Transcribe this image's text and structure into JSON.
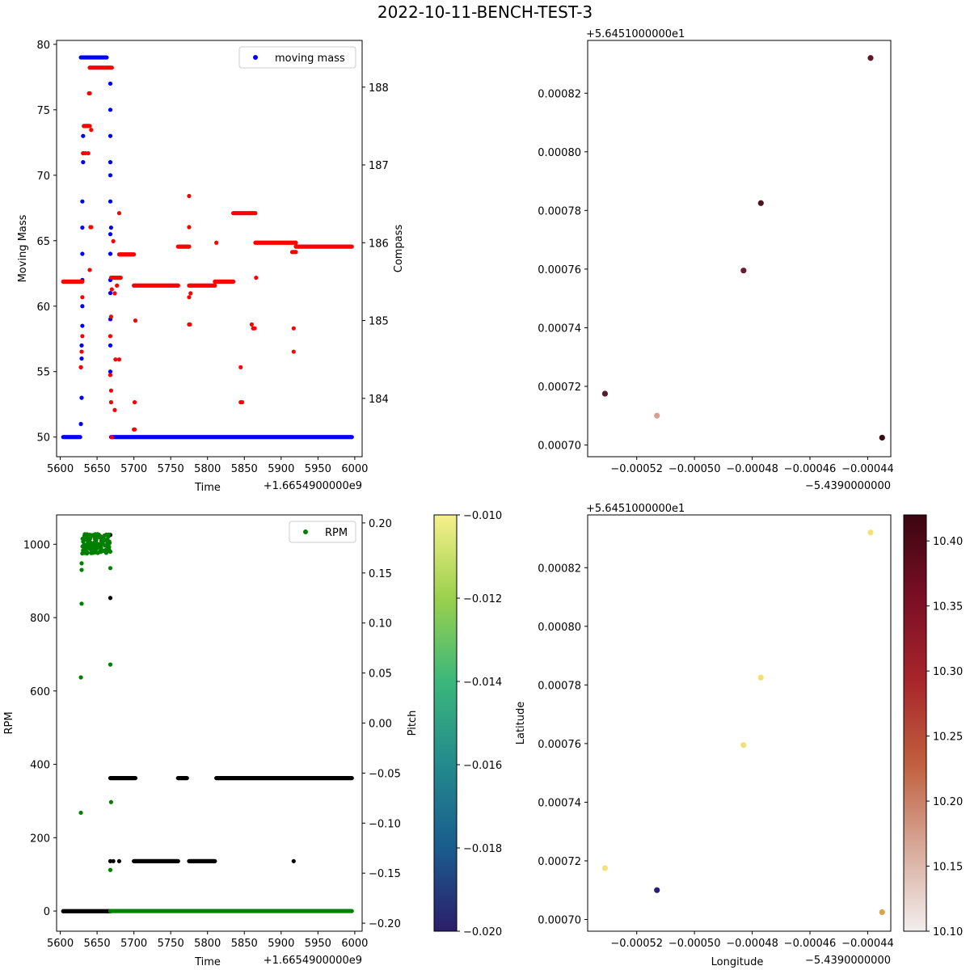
{
  "figure_title": "2022-10-11-BENCH-TEST-3",
  "chart_data": [
    {
      "id": "moving-mass-compass",
      "type": "scatter",
      "xlabel": "Time",
      "ylabel": "Moving Mass",
      "ylabel_right": "Compass",
      "x_offset_text": "+1.6654900000e9",
      "xlim": [
        5595,
        6010
      ],
      "ylim": [
        48.5,
        80.3
      ],
      "ylim_right": [
        183.25,
        188.6
      ],
      "xticks": [
        5600,
        5650,
        5700,
        5750,
        5800,
        5850,
        5900,
        5950,
        6000
      ],
      "yticks": [
        50,
        55,
        60,
        65,
        70,
        75,
        80
      ],
      "yticks_right": [
        184,
        185,
        186,
        187,
        188
      ],
      "legend": {
        "entries": [
          "moving mass"
        ],
        "position": "top-right"
      },
      "series": [
        {
          "name": "moving mass",
          "color": "#0000ff",
          "axis": "left",
          "runs": [
            [
              5604,
              5627,
              50
            ],
            [
              5628,
              5663,
              79
            ],
            [
              5669,
              5996,
              50
            ]
          ],
          "points": [
            [
              5628,
              51
            ],
            [
              5629,
              53
            ],
            [
              5629,
              56
            ],
            [
              5629,
              57
            ],
            [
              5630,
              58.5
            ],
            [
              5630,
              60
            ],
            [
              5630,
              62
            ],
            [
              5630,
              64
            ],
            [
              5630,
              66
            ],
            [
              5630,
              68
            ],
            [
              5631,
              71
            ],
            [
              5631,
              73
            ],
            [
              5668,
              55
            ],
            [
              5668,
              57
            ],
            [
              5668,
              59
            ],
            [
              5668,
              61
            ],
            [
              5668,
              62
            ],
            [
              5668,
              64
            ],
            [
              5668,
              65.5
            ],
            [
              5669,
              66
            ],
            [
              5668,
              68
            ],
            [
              5668,
              70
            ],
            [
              5668,
              71
            ],
            [
              5668,
              73
            ],
            [
              5668,
              75
            ],
            [
              5668,
              77
            ]
          ]
        },
        {
          "name": "compass",
          "color": "#ff0000",
          "axis": "right",
          "runs": [
            [
              5604,
              5630,
              185.5
            ],
            [
              5632,
              5640,
              187.5
            ],
            [
              5640,
              5670,
              188.25
            ],
            [
              5669,
              5682,
              185.55
            ],
            [
              5680,
              5700,
              185.85
            ],
            [
              5700,
              5760,
              185.45
            ],
            [
              5760,
              5775,
              185.95
            ],
            [
              5775,
              5810,
              185.45
            ],
            [
              5810,
              5835,
              185.5
            ],
            [
              5835,
              5865,
              186.38
            ],
            [
              5865,
              5920,
              186
            ],
            [
              5915,
              5920,
              185.88
            ],
            [
              5920,
              5996,
              185.95
            ]
          ],
          "points": [
            [
              5628,
              184.4
            ],
            [
              5628,
              184.4
            ],
            [
              5629,
              184.6
            ],
            [
              5630,
              184.8
            ],
            [
              5630,
              185.3
            ],
            [
              5631,
              187.15
            ],
            [
              5631,
              187.15
            ],
            [
              5634,
              187.15
            ],
            [
              5638,
              187.15
            ],
            [
              5639,
              187.92
            ],
            [
              5640,
              187.92
            ],
            [
              5642,
              187.45
            ],
            [
              5641,
              186.2
            ],
            [
              5642,
              186.2
            ],
            [
              5640,
              185.65
            ],
            [
              5668,
              184.3
            ],
            [
              5668,
              184.8
            ],
            [
              5669,
              185.05
            ],
            [
              5669,
              184.1
            ],
            [
              5669,
              183.95
            ],
            [
              5670,
              183.5
            ],
            [
              5670,
              185.4
            ],
            [
              5674,
              183.85
            ],
            [
              5675,
              184.5
            ],
            [
              5680,
              184.5
            ],
            [
              5680,
              186.38
            ],
            [
              5674,
              185.35
            ],
            [
              5677,
              185.45
            ],
            [
              5672,
              186.02
            ],
            [
              5683,
              185.85
            ],
            [
              5701,
              183.95
            ],
            [
              5702,
              185.0
            ],
            [
              5701,
              183.6
            ],
            [
              5700,
              183.6
            ],
            [
              5775,
              186.6
            ],
            [
              5775,
              186.2
            ],
            [
              5775,
              184.95
            ],
            [
              5776,
              184.95
            ],
            [
              5775,
              185.3
            ],
            [
              5777,
              185.35
            ],
            [
              5812,
              186
            ],
            [
              5845,
              184.4
            ],
            [
              5845,
              183.95
            ],
            [
              5847,
              183.95
            ],
            [
              5860,
              184.95
            ],
            [
              5862,
              184.9
            ],
            [
              5864,
              184.9
            ],
            [
              5866,
              185.55
            ],
            [
              5917,
              184.6
            ],
            [
              5917,
              184.9
            ]
          ]
        }
      ]
    },
    {
      "id": "lat-lon-compass",
      "type": "scatter",
      "xlabel": "",
      "ylabel": "",
      "x_offset_text": "−5.4390000000",
      "y_offset_text": "+5.6451000000e1",
      "xlim": [
        -0.000537,
        -0.000432
      ],
      "ylim": [
        0.000696,
        0.000838
      ],
      "xticks": [
        -0.00052,
        -0.0005,
        -0.00048,
        -0.00046,
        -0.00044
      ],
      "xtick_labels": [
        "−0.00052",
        "−0.00050",
        "−0.00048",
        "−0.00046",
        "−0.00044"
      ],
      "yticks": [
        0.0007,
        0.00072,
        0.00074,
        0.00076,
        0.00078,
        0.0008,
        0.00082
      ],
      "ytick_labels": [
        "0.00070",
        "0.00072",
        "0.00074",
        "0.00076",
        "0.00078",
        "0.00080",
        "0.00082"
      ],
      "points": [
        {
          "x": -0.000531,
          "y": 0.0007175,
          "color": "#5a1a2e"
        },
        {
          "x": -0.000513,
          "y": 0.00071,
          "color": "#d9a08e"
        },
        {
          "x": -0.000483,
          "y": 0.0007595,
          "color": "#6b1a33"
        },
        {
          "x": -0.000477,
          "y": 0.0007825,
          "color": "#4e1420"
        },
        {
          "x": -0.000439,
          "y": 0.000832,
          "color": "#5e1628"
        },
        {
          "x": -0.000435,
          "y": 0.0007025,
          "color": "#3a0a14"
        }
      ]
    },
    {
      "id": "rpm-pitch",
      "type": "scatter",
      "xlabel": "Time",
      "ylabel": "RPM",
      "ylabel_right": "Pitch",
      "x_offset_text": "+1.6654900000e9",
      "xlim": [
        5595,
        6010
      ],
      "ylim": [
        -55,
        1080
      ],
      "ylim_right": [
        -0.208,
        0.208
      ],
      "xticks": [
        5600,
        5650,
        5700,
        5750,
        5800,
        5850,
        5900,
        5950,
        6000
      ],
      "yticks": [
        0,
        200,
        400,
        600,
        800,
        1000
      ],
      "yticks_right": [
        -0.2,
        -0.15,
        -0.1,
        -0.05,
        0.0,
        0.05,
        0.1,
        0.15,
        0.2
      ],
      "ytick_labels_right": [
        "−0.20",
        "−0.15",
        "−0.10",
        "−0.05",
        "0.00",
        "0.05",
        "0.10",
        "0.15",
        "0.20"
      ],
      "legend": {
        "entries": [
          "RPM"
        ],
        "position": "top-right"
      },
      "series": [
        {
          "name": "pitch",
          "color": "#000000",
          "axis": "right",
          "runs": [
            [
              5604,
              5668,
              -0.188
            ],
            [
              5668,
              5702,
              -0.055
            ],
            [
              5700,
              5760,
              -0.138
            ],
            [
              5760,
              5772,
              -0.055
            ],
            [
              5775,
              5810,
              -0.138
            ],
            [
              5812,
              5996,
              -0.055
            ]
          ],
          "points": [
            [
              5668,
              -0.138
            ],
            [
              5672,
              -0.138
            ],
            [
              5680,
              -0.138
            ],
            [
              5668,
              0.125
            ],
            [
              5668,
              0.188
            ],
            [
              5917,
              -0.138
            ]
          ]
        },
        {
          "name": "RPM",
          "color": "#008000",
          "axis": "left",
          "runs": [
            [
              5668,
              5996,
              0
            ]
          ],
          "points": [
            [
              5628,
              268
            ],
            [
              5628,
              637
            ],
            [
              5629,
              838
            ],
            [
              5629,
              930
            ],
            [
              5629,
              948
            ],
            [
              5630,
              975
            ],
            [
              5668,
              112
            ],
            [
              5669,
              297
            ],
            [
              5668,
              672
            ],
            [
              5668,
              935
            ],
            [
              5668,
              980
            ]
          ],
          "cluster": {
            "x_range": [
              5630,
              5668
            ],
            "y_range": [
              975,
              1028
            ],
            "count": 140
          }
        }
      ]
    },
    {
      "id": "lat-lon-pitch",
      "type": "scatter",
      "xlabel": "Longitude",
      "ylabel": "Latitude",
      "x_offset_text": "−5.4390000000",
      "y_offset_text": "+5.6451000000e1",
      "xlim": [
        -0.000537,
        -0.000432
      ],
      "ylim": [
        0.000696,
        0.000838
      ],
      "xticks": [
        -0.00052,
        -0.0005,
        -0.00048,
        -0.00046,
        -0.00044
      ],
      "xtick_labels": [
        "−0.00052",
        "−0.00050",
        "−0.00048",
        "−0.00046",
        "−0.00044"
      ],
      "yticks": [
        0.0007,
        0.00072,
        0.00074,
        0.00076,
        0.00078,
        0.0008,
        0.00082
      ],
      "ytick_labels": [
        "0.00070",
        "0.00072",
        "0.00074",
        "0.00076",
        "0.00078",
        "0.00080",
        "0.00082"
      ],
      "points": [
        {
          "x": -0.000531,
          "y": 0.0007175,
          "color": "#f4e27a"
        },
        {
          "x": -0.000513,
          "y": 0.00071,
          "color": "#2d1d78"
        },
        {
          "x": -0.000483,
          "y": 0.0007595,
          "color": "#efe07d"
        },
        {
          "x": -0.000477,
          "y": 0.0007825,
          "color": "#f1e07a"
        },
        {
          "x": -0.000439,
          "y": 0.000832,
          "color": "#f2e078"
        },
        {
          "x": -0.000435,
          "y": 0.0007025,
          "color": "#d6a64e"
        }
      ]
    }
  ],
  "colorbars": [
    {
      "id": "pitch-colorbar",
      "colormap": "viridis",
      "range": [
        -0.02,
        -0.01
      ],
      "ticks": [
        -0.02,
        -0.018,
        -0.016,
        -0.014,
        -0.012,
        -0.01
      ],
      "tick_labels": [
        "−0.020",
        "−0.018",
        "−0.016",
        "−0.014",
        "−0.012",
        "−0.010"
      ],
      "stops": [
        "#2c1e6a",
        "#1a5c8e",
        "#238a8d",
        "#3bb77b",
        "#9ad14c",
        "#f6f08c"
      ]
    },
    {
      "id": "compass-colorbar",
      "colormap": "reds-dark",
      "range": [
        10.1,
        10.42
      ],
      "ticks": [
        10.1,
        10.15,
        10.2,
        10.25,
        10.3,
        10.35,
        10.4
      ],
      "tick_labels": [
        "10.10",
        "10.15",
        "10.20",
        "10.25",
        "10.30",
        "10.35",
        "10.40"
      ],
      "stops": [
        "#f3efee",
        "#d8a999",
        "#c0603f",
        "#a8262b",
        "#7a0f25",
        "#3b0510"
      ]
    }
  ]
}
